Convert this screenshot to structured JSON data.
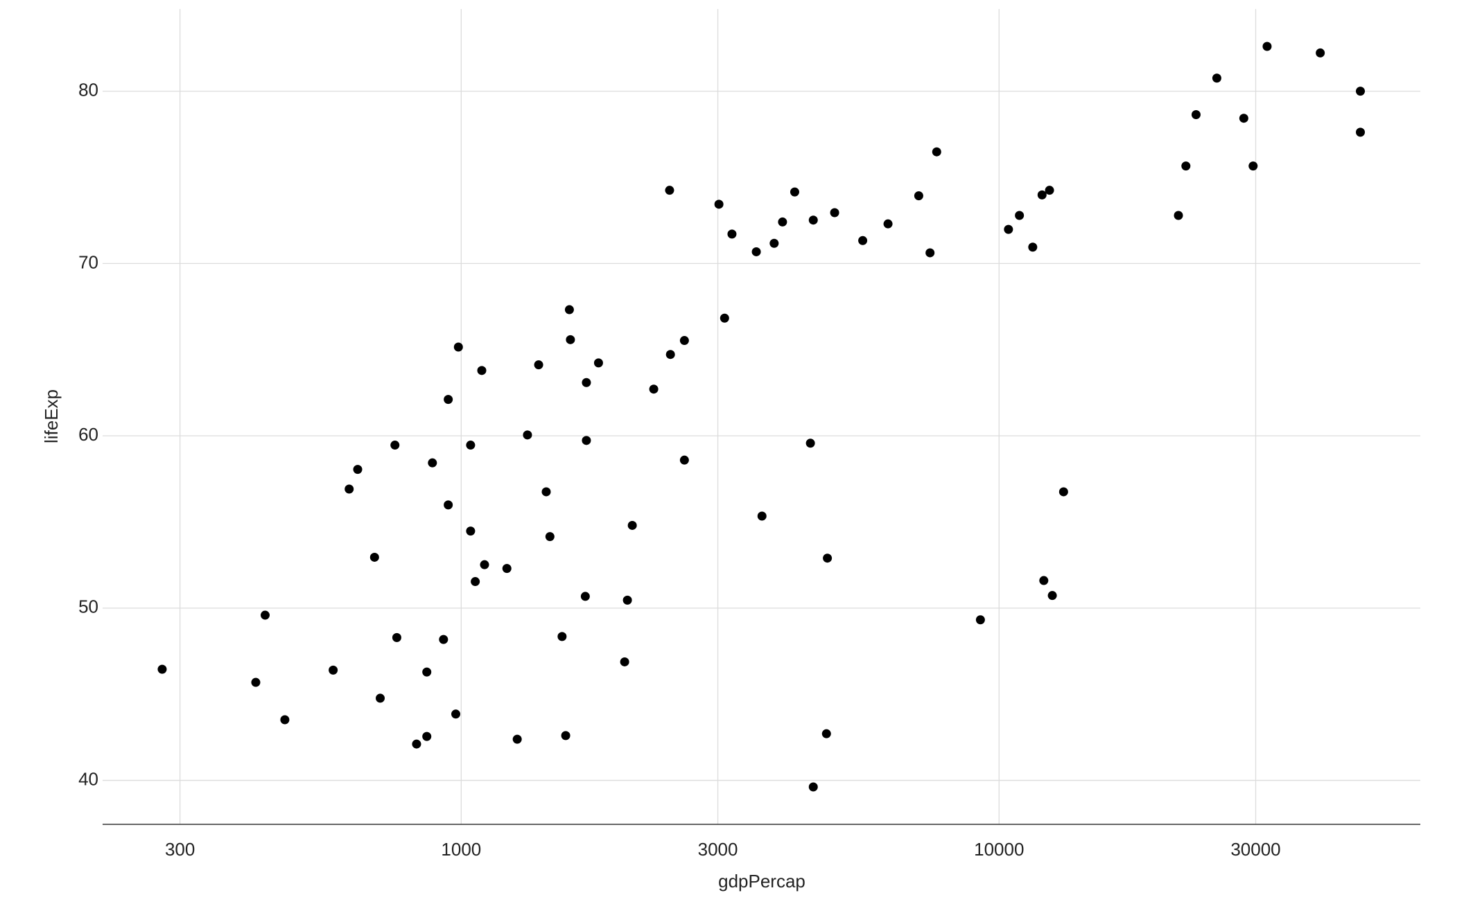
{
  "chart_data": {
    "type": "scatter",
    "x_label": "gdpPercap",
    "y_label": "lifeExp",
    "xscale": "log",
    "grid": true,
    "color": "#000000",
    "xlim": [
      215.4,
      60700
    ],
    "ylim": [
      37.45,
      84.77
    ],
    "xticks": [
      300,
      1000,
      3000,
      10000,
      30000
    ],
    "yticks": [
      40,
      50,
      60,
      70,
      80
    ],
    "x": [
      278,
      415,
      432,
      470,
      578,
      619,
      642,
      690,
      707,
      753,
      759,
      826,
      863,
      863,
      884,
      927,
      946,
      946,
      977,
      988,
      1041,
      1041,
      1062,
      1092,
      1105,
      1216,
      1271,
      1328,
      1393,
      1439,
      1462,
      1540,
      1564,
      1589,
      1596,
      1701,
      1709,
      1709,
      1800,
      2013,
      2037,
      2080,
      2280,
      2440,
      2449,
      2600,
      2600,
      3014,
      3088,
      3187,
      3537,
      3624,
      3818,
      3957,
      4169,
      4459,
      4514,
      4514,
      4776,
      4795,
      4946,
      5578,
      6216,
      7090,
      7441,
      7656,
      9232,
      10410,
      10910,
      11550,
      12020,
      12110,
      12410,
      12560,
      13180,
      21550,
      22250,
      23240,
      25400,
      28510,
      29670,
      31500,
      39550,
      46960,
      46960
    ],
    "values": [
      46.45,
      45.69,
      49.59,
      43.52,
      46.4,
      56.91,
      58.05,
      52.95,
      44.77,
      59.46,
      48.29,
      42.11,
      46.29,
      42.55,
      58.43,
      48.18,
      62.11,
      55.99,
      43.85,
      65.15,
      59.46,
      54.47,
      51.54,
      63.79,
      52.52,
      52.3,
      42.39,
      60.05,
      64.12,
      56.75,
      54.15,
      48.35,
      42.6,
      67.32,
      65.58,
      50.68,
      63.09,
      59.73,
      64.23,
      46.88,
      50.46,
      54.8,
      62.71,
      74.25,
      64.72,
      65.53,
      58.59,
      73.44,
      66.83,
      71.71,
      70.68,
      55.34,
      71.17,
      72.41,
      74.15,
      59.57,
      72.52,
      39.62,
      42.71,
      52.9,
      72.95,
      71.33,
      72.3,
      73.93,
      70.62,
      76.48,
      49.32,
      71.98,
      72.79,
      70.95,
      73.98,
      51.6,
      74.25,
      50.73,
      56.75,
      72.79,
      75.66,
      78.64,
      80.76,
      78.43,
      75.66,
      82.6,
      82.22,
      80.0,
      77.62
    ]
  }
}
